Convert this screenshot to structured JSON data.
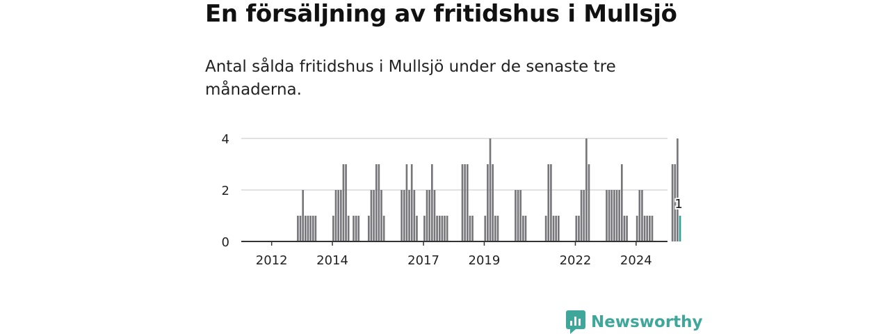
{
  "header": {
    "title": "En försäljning av fritidshus i Mullsjö",
    "subtitle": "Antal sålda fritidshus i Mullsjö under de senaste tre månaderna."
  },
  "brand": {
    "name": "Newsworthy",
    "color": "#3fa69a",
    "icon": "bar-chart-icon"
  },
  "colors": {
    "bar": "#76767a",
    "highlight": "#2aa198",
    "grid": "#d9d9d9",
    "axis": "#333333"
  },
  "chart_data": {
    "type": "bar",
    "x_start": "2011-01",
    "x_unit": "month",
    "values": [
      0,
      0,
      0,
      0,
      0,
      0,
      0,
      0,
      0,
      0,
      0,
      0,
      0,
      0,
      0,
      0,
      0,
      0,
      0,
      0,
      0,
      0,
      1,
      1,
      2,
      1,
      1,
      1,
      1,
      1,
      0,
      0,
      0,
      0,
      0,
      0,
      1,
      2,
      2,
      2,
      3,
      3,
      1,
      0,
      1,
      1,
      1,
      0,
      0,
      0,
      1,
      2,
      2,
      3,
      3,
      2,
      1,
      0,
      0,
      0,
      0,
      0,
      0,
      2,
      2,
      3,
      2,
      3,
      2,
      1,
      0,
      0,
      1,
      2,
      2,
      3,
      2,
      1,
      1,
      1,
      1,
      1,
      0,
      0,
      0,
      0,
      0,
      3,
      3,
      3,
      1,
      1,
      0,
      0,
      0,
      0,
      1,
      3,
      4,
      3,
      1,
      1,
      0,
      0,
      0,
      0,
      0,
      0,
      2,
      2,
      2,
      1,
      1,
      0,
      0,
      0,
      0,
      0,
      0,
      0,
      1,
      3,
      3,
      1,
      1,
      1,
      0,
      0,
      0,
      0,
      0,
      0,
      1,
      1,
      2,
      2,
      4,
      3,
      0,
      0,
      0,
      0,
      0,
      0,
      2,
      2,
      2,
      2,
      2,
      2,
      3,
      1,
      1,
      0,
      0,
      0,
      1,
      2,
      2,
      1,
      1,
      1,
      1,
      0,
      0,
      0,
      0,
      0,
      0,
      0,
      3,
      3,
      4,
      1
    ],
    "highlight_label": "1",
    "ylim": [
      0,
      4
    ],
    "y_ticks": [
      "0",
      "2",
      "4"
    ],
    "x_ticks": [
      {
        "label": "2012",
        "value": "2012-01"
      },
      {
        "label": "2014",
        "value": "2014-01"
      },
      {
        "label": "2017",
        "value": "2017-01"
      },
      {
        "label": "2019",
        "value": "2019-01"
      },
      {
        "label": "2022",
        "value": "2022-01"
      },
      {
        "label": "2024",
        "value": "2024-01"
      }
    ],
    "grid": true
  }
}
